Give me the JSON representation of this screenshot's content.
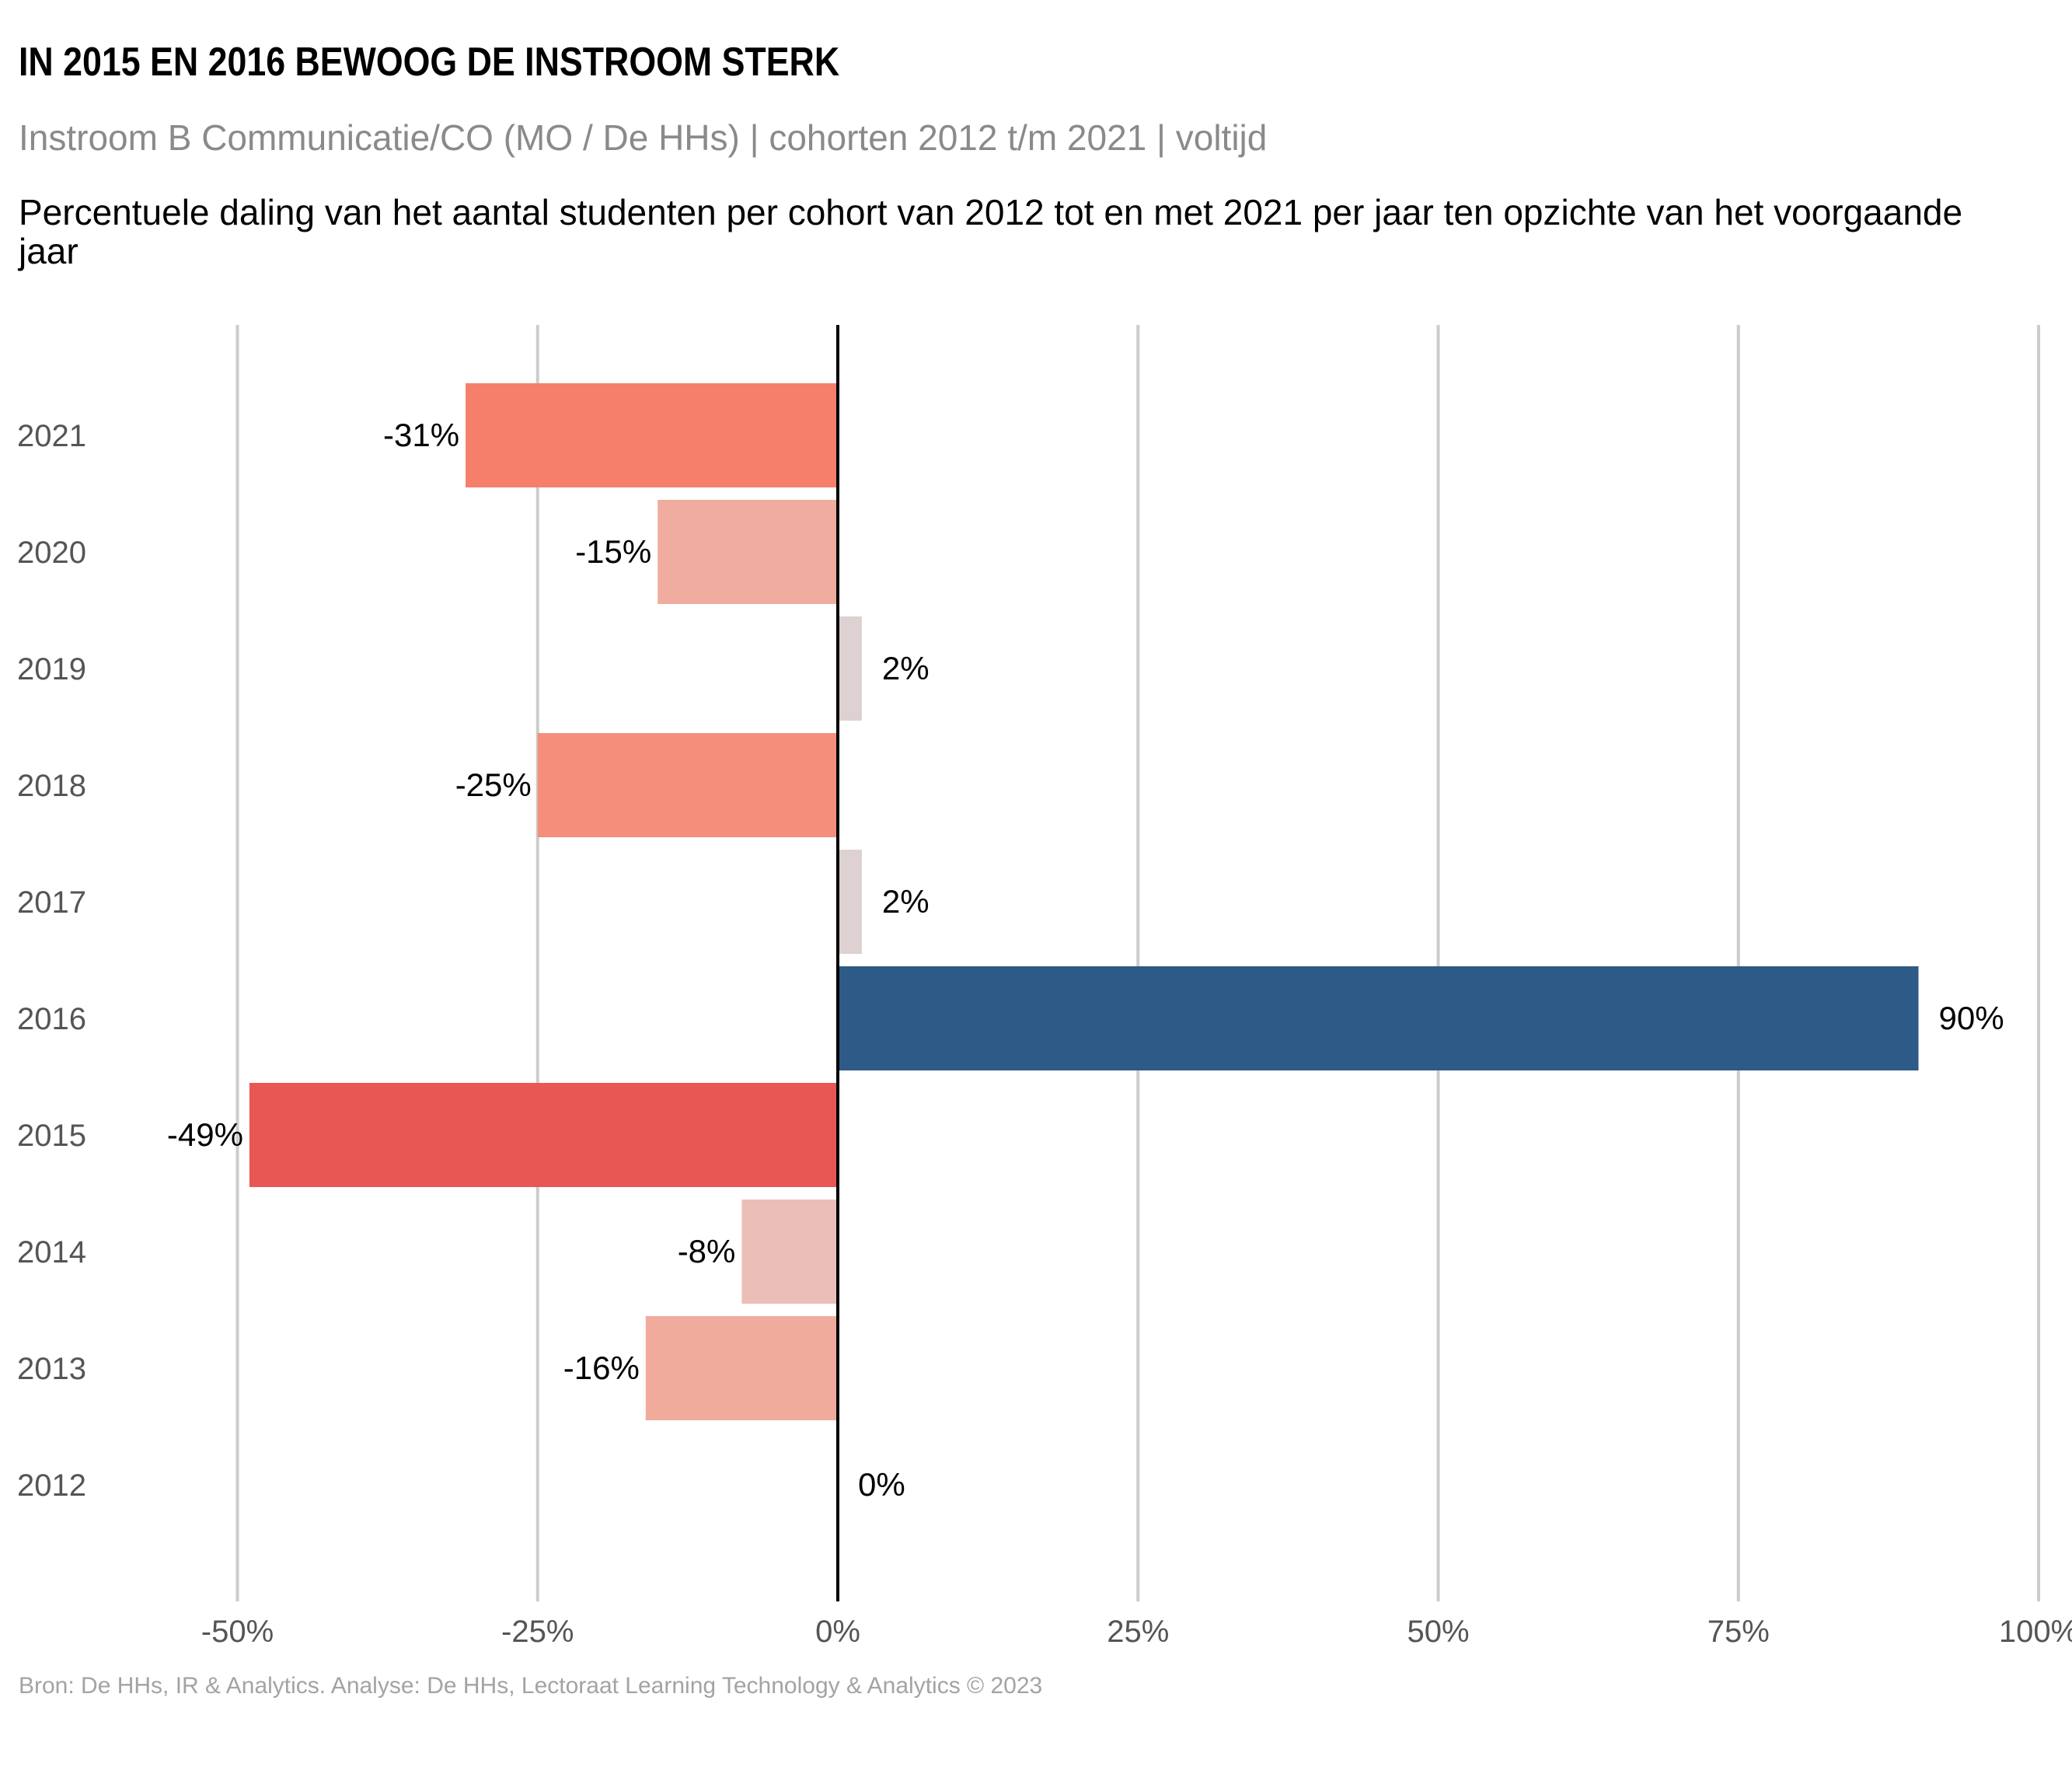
{
  "header": {
    "title": "IN 2015 EN 2016 BEWOOG DE INSTROOM STERK",
    "subtitle": "Instroom B Communicatie/CO (MO / De HHs) | cohorten 2012 t/m 2021 | voltijd",
    "description": "Percentuele daling van het aantal studenten per cohort van 2012 tot en met 2021 per jaar ten opzichte van het voorgaande jaar"
  },
  "footer": {
    "caption": "Bron: De HHs, IR & Analytics. Analyse: De HHs, Lectoraat Learning Technology & Analytics © 2023"
  },
  "chart_data": {
    "type": "bar",
    "orientation": "horizontal",
    "categories": [
      "2021",
      "2020",
      "2019",
      "2018",
      "2017",
      "2016",
      "2015",
      "2014",
      "2013",
      "2012"
    ],
    "values": [
      -31,
      -15,
      2,
      -25,
      2,
      90,
      -49,
      -8,
      -16,
      0
    ],
    "data_labels": [
      "-31%",
      "-15%",
      "2%",
      "-25%",
      "2%",
      "90%",
      "-49%",
      "-8%",
      "-16%",
      "0%"
    ],
    "bar_colors": [
      "#f57f6b",
      "#f0ac9e",
      "#ddd1d1",
      "#f48f7b",
      "#ddd1d1",
      "#2e5a87",
      "#e85753",
      "#ebbfb7",
      "#f0ab9c",
      "#ddd1d1"
    ],
    "xlim": [
      -60,
      100
    ],
    "x_ticks": [
      -50,
      -25,
      0,
      25,
      50,
      75,
      100
    ],
    "x_tick_labels": [
      "-50%",
      "-25%",
      "0%",
      "25%",
      "50%",
      "75%",
      "100%"
    ],
    "grid": "vertical",
    "zero_line": true,
    "legend": "none"
  }
}
